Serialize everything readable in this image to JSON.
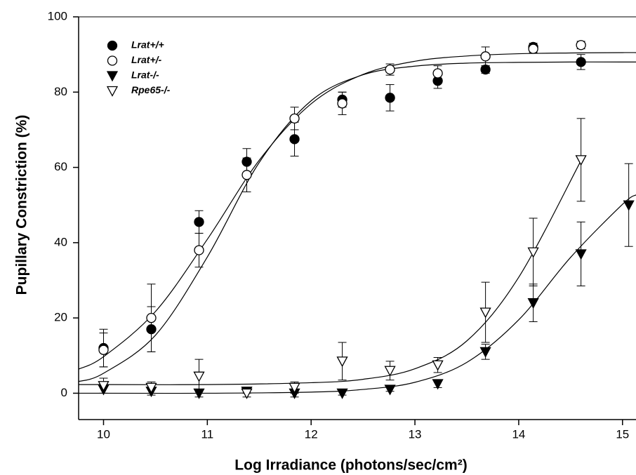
{
  "chart_data": {
    "type": "scatter",
    "xlabel": "Log Irradiance (photons/sec/cm²)",
    "ylabel": "Pupillary Constriction (%)",
    "xlim": [
      9.76,
      15.13
    ],
    "ylim": [
      -7,
      100
    ],
    "xticks": [
      10,
      11,
      12,
      13,
      14,
      15
    ],
    "yticks": [
      0,
      20,
      40,
      60,
      80,
      100
    ],
    "legend": "upper left",
    "series": [
      {
        "name": "Lrat+/+",
        "color": "#000000",
        "marker": "circle",
        "filled": true,
        "x": [
          10,
          10.46,
          10.92,
          11.38,
          11.84,
          12.3,
          12.76,
          13.22,
          13.68,
          14.14,
          14.6
        ],
        "values": [
          12,
          17,
          45.5,
          61.5,
          67.5,
          78,
          78.5,
          83,
          86,
          92,
          88
        ],
        "errors": [
          5,
          6,
          3,
          3.5,
          4.5,
          2,
          3.5,
          2,
          1,
          1,
          2
        ],
        "fit": {
          "x": [
            9.76,
            10,
            10.5,
            11,
            11.5,
            12,
            12.5,
            13,
            13.5,
            14,
            14.5,
            15,
            15.13
          ],
          "y": [
            3.1,
            5.3,
            15.4,
            36.2,
            61.3,
            77.7,
            84.6,
            86.9,
            87.7,
            87.9,
            88,
            88,
            88
          ]
        }
      },
      {
        "name": "Lrat+/-",
        "color": "#000000",
        "marker": "circle",
        "filled": false,
        "x": [
          10,
          10.46,
          10.92,
          11.38,
          11.84,
          12.3,
          12.76,
          13.22,
          13.68,
          14.14,
          14.6
        ],
        "values": [
          11.5,
          20,
          38,
          58,
          73,
          77,
          86,
          85,
          89.5,
          91.5,
          92.5
        ],
        "errors": [
          4.5,
          9,
          4.5,
          4.5,
          3,
          3,
          1.5,
          2,
          2.5,
          1,
          1
        ],
        "fit": {
          "x": [
            9.76,
            10,
            10.5,
            11,
            11.5,
            12,
            12.5,
            13,
            13.5,
            14,
            14.5,
            15,
            15.13
          ],
          "y": [
            6.4,
            9.7,
            21.7,
            40.9,
            61.9,
            76.9,
            84.7,
            88.2,
            89.6,
            90.2,
            90.4,
            90.5,
            90.5
          ]
        }
      },
      {
        "name": "Lrat-/-",
        "color": "#000000",
        "marker": "triangle-down",
        "filled": true,
        "x": [
          10,
          10.46,
          10.92,
          11.38,
          11.84,
          12.3,
          12.76,
          13.22,
          13.68,
          14.14,
          14.6,
          15.06
        ],
        "values": [
          1,
          0.5,
          0,
          0.5,
          0,
          0,
          1,
          2.5,
          11,
          24,
          37,
          50
        ],
        "errors": [
          1,
          1,
          1,
          0.5,
          1,
          0.5,
          0.5,
          1,
          2,
          5,
          8.5,
          11
        ],
        "fit": {
          "x": [
            9.76,
            10,
            11,
            12,
            12.5,
            13,
            13.5,
            14,
            14.5,
            15,
            15.13
          ],
          "y": [
            0,
            0,
            0,
            0.3,
            1,
            2.9,
            8.2,
            19.5,
            36.1,
            50.2,
            52.7
          ]
        }
      },
      {
        "name": "Rpe65-/-",
        "color": "#000000",
        "marker": "triangle-down",
        "filled": false,
        "x": [
          10,
          10.46,
          10.92,
          11.38,
          11.84,
          12.3,
          12.76,
          13.22,
          13.68,
          14.14,
          14.6
        ],
        "values": [
          2,
          1.5,
          4.5,
          0,
          1.5,
          8.5,
          6,
          7.5,
          21.5,
          37.5,
          62
        ],
        "errors": [
          2,
          1.5,
          4.5,
          1,
          1.5,
          5,
          2.5,
          2,
          8,
          9,
          11
        ],
        "fit": {
          "x": [
            9.76,
            10,
            11,
            12,
            12.5,
            13,
            13.5,
            14,
            14.6
          ],
          "y": [
            2.3,
            2.3,
            2.3,
            2.8,
            3.7,
            6.5,
            13.9,
            30.8,
            61.8
          ]
        }
      }
    ]
  }
}
